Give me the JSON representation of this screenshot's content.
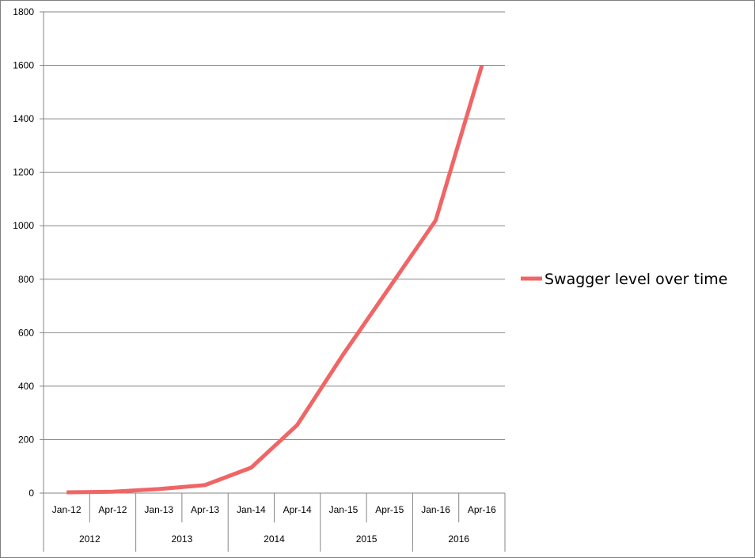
{
  "chart_data": {
    "type": "line",
    "title": "",
    "xlabel": "",
    "ylabel": "",
    "x_tick_labels": [
      "Jan-12",
      "Apr-12",
      "Jan-13",
      "Apr-13",
      "Jan-14",
      "Apr-14",
      "Jan-15",
      "Apr-15",
      "Jan-16",
      "Apr-16"
    ],
    "x_group_labels": [
      "2012",
      "2013",
      "2014",
      "2015",
      "2016"
    ],
    "y_tick_labels": [
      "0",
      "200",
      "400",
      "600",
      "800",
      "1000",
      "1200",
      "1400",
      "1600",
      "1800"
    ],
    "ylim": [
      0,
      1800
    ],
    "y_tick_step": 200,
    "grid": true,
    "legend_position": "right",
    "series": [
      {
        "name": "Swagger level over time",
        "color": "#f06565",
        "values": [
          3,
          5,
          15,
          30,
          95,
          255,
          520,
          770,
          1020,
          1600
        ]
      }
    ]
  }
}
